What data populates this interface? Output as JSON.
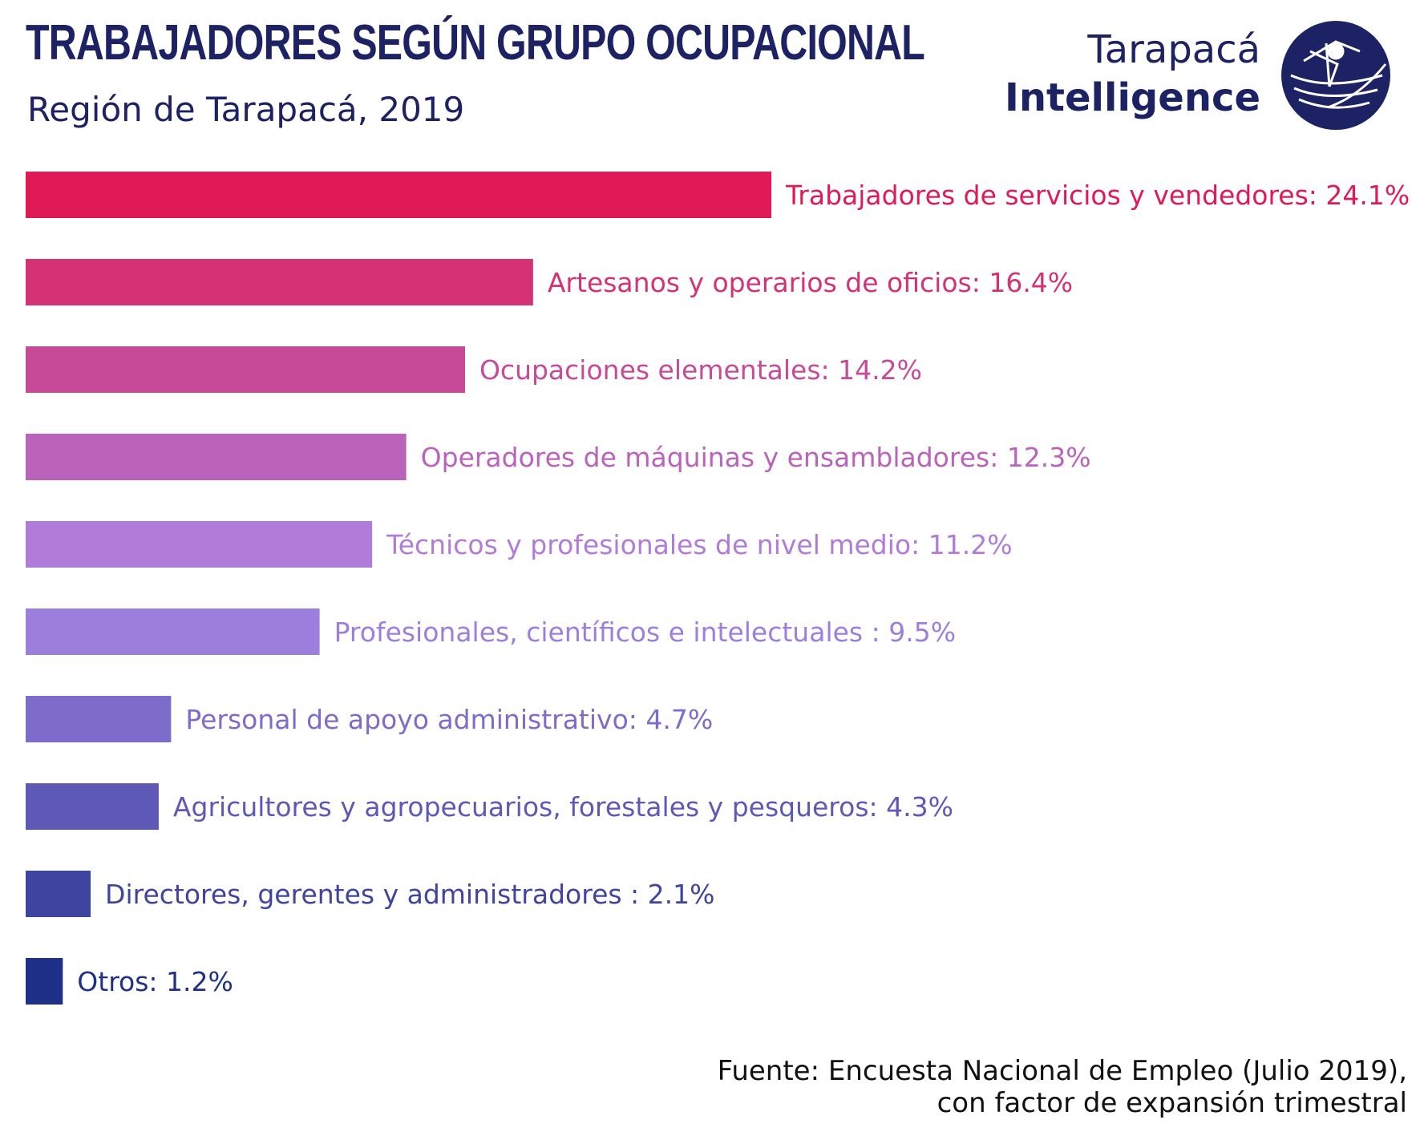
{
  "header": {
    "title": "TRABAJADORES SEGÚN GRUPO OCUPACIONAL",
    "subtitle": "Región de Tarapacá, 2019"
  },
  "brand": {
    "line1": "Tarapacá",
    "line2": "Intelligence",
    "logo_icon": "globe-logo-icon",
    "color": "#1d2264"
  },
  "source": {
    "line1": "Fuente: Encuesta Nacional de Empleo (Julio 2019),",
    "line2": "con factor de expansión trimestral"
  },
  "chart_data": {
    "type": "bar",
    "orientation": "horizontal",
    "title": "TRABAJADORES SEGÚN GRUPO OCUPACIONAL",
    "subtitle": "Región de Tarapacá, 2019",
    "unit": "%",
    "xlim": [
      0,
      24.1
    ],
    "grid": false,
    "legend": "none",
    "categories": [
      "Trabajadores de servicios y vendedores",
      "Artesanos y operarios de oficios",
      "Ocupaciones elementales",
      "Operadores de máquinas y ensambladores",
      "Técnicos y profesionales de nivel medio",
      "Profesionales, científicos e intelectuales",
      "Personal de apoyo administrativo",
      "Agricultores y agropecuarios, forestales y pesqueros",
      "Directores, gerentes y administradores",
      "Otros"
    ],
    "values": [
      24.1,
      16.4,
      14.2,
      12.3,
      11.2,
      9.5,
      4.7,
      4.3,
      2.1,
      1.2
    ],
    "labels": [
      "Trabajadores de servicios y vendedores: 24.1%",
      "Artesanos y operarios de oficios: 16.4%",
      "Ocupaciones elementales: 14.2%",
      "Operadores de máquinas y ensambladores: 12.3%",
      "Técnicos y profesionales de nivel medio: 11.2%",
      "Profesionales, científicos e intelectuales : 9.5%",
      "Personal de apoyo administrativo: 4.7%",
      "Agricultores y agropecuarios, forestales y pesqueros: 4.3%",
      "Directores, gerentes y administradores : 2.1%",
      "Otros: 1.2%"
    ],
    "colors": [
      "#e01a56",
      "#d43275",
      "#c74a98",
      "#bb62bb",
      "#b07bd9",
      "#9c7fdc",
      "#7d6cc9",
      "#5e58b6",
      "#3e44a0",
      "#1f3088"
    ]
  }
}
